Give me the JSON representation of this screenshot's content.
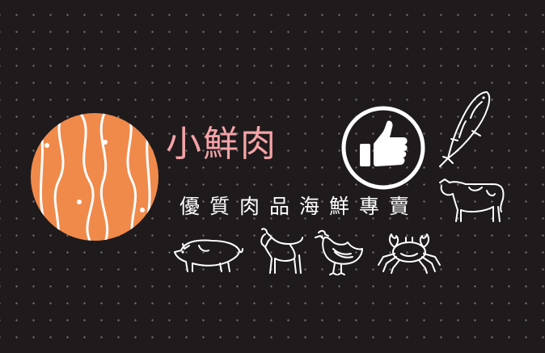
{
  "brand": {
    "name": "小鮮肉",
    "tagline": "優質肉品海鮮專賣"
  },
  "colors": {
    "background": "#1f1b1c",
    "salmon": "#f08a4b",
    "title_pink": "#f5a3a8",
    "line_art": "#ffffff"
  },
  "icons": [
    "salmon-slice-icon",
    "thumbs-up-icon",
    "fish-icon",
    "cow-icon",
    "pig-icon",
    "goat-icon",
    "chicken-icon",
    "crab-icon"
  ]
}
